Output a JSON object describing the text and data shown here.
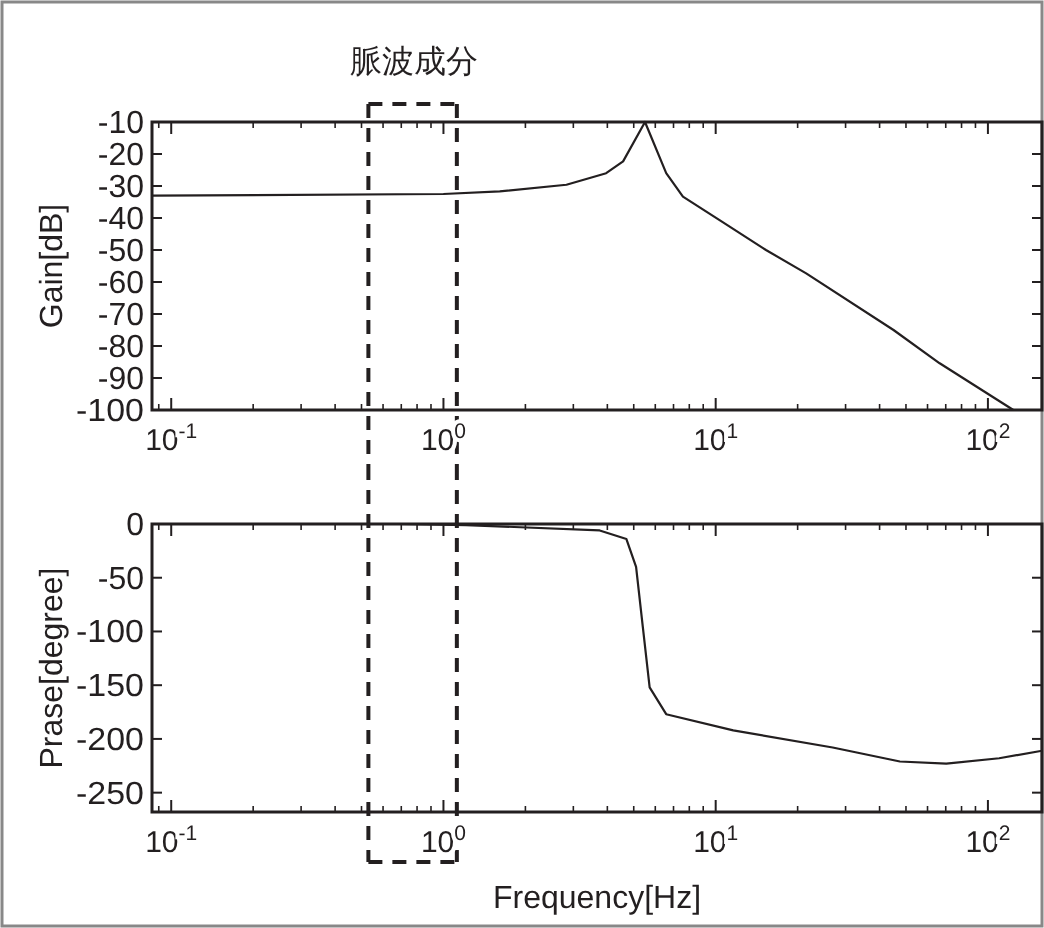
{
  "chart_data": [
    {
      "type": "line",
      "ylabel": "Gain[dB]",
      "log": "x",
      "xlim": [
        0.085,
        158
      ],
      "ylim": [
        -100,
        -10
      ],
      "xticks": [
        {
          "value": 0.1,
          "label": "10$^{-1}$"
        },
        {
          "value": 1,
          "label": "10$^{0}$"
        },
        {
          "value": 10,
          "label": "10$^{1}$"
        },
        {
          "value": 100,
          "label": "10$^{2}$"
        }
      ],
      "yticks": [
        -100,
        -90,
        -80,
        -70,
        -60,
        -50,
        -40,
        -30,
        -20,
        -10
      ],
      "x": [
        0.085,
        1,
        1.61,
        2.83,
        3.96,
        4.57,
        5.5,
        6.58,
        7.58,
        10.3,
        15.3,
        21.5,
        45,
        66.5,
        124
      ],
      "series": [
        {
          "color": "#231f20",
          "values": [
            -33,
            -32.5,
            -31.7,
            -29.6,
            -26,
            -22.3,
            -10,
            -26,
            -33.3,
            -40.6,
            -50,
            -57.3,
            -75,
            -85.4,
            -100
          ]
        }
      ],
      "annotations": [
        "脈波成分"
      ],
      "ref_lines": [
        {
          "axis": "x",
          "value": 0.53,
          "line_style": "dashed"
        },
        {
          "axis": "x",
          "value": 1.12,
          "line_style": "dashed"
        }
      ]
    },
    {
      "type": "line",
      "xlabel": "Frequency[Hz]",
      "ylabel": "Prase[degree]",
      "log": "x",
      "xlim": [
        0.085,
        158
      ],
      "ylim": [
        -268,
        0
      ],
      "xticks": [
        {
          "value": 0.1,
          "label": "10$^{-1}$"
        },
        {
          "value": 1,
          "label": "10$^{0}$"
        },
        {
          "value": 10,
          "label": "10$^{1}$"
        },
        {
          "value": 100,
          "label": "10$^{2}$"
        }
      ],
      "yticks": [
        -250,
        -200,
        -150,
        -100,
        -50,
        0
      ],
      "x": [
        0.69,
        1.21,
        3.75,
        4.7,
        5.1,
        5.4,
        5.72,
        6.58,
        11.6,
        26.9,
        47.5,
        70.3,
        110,
        158
      ],
      "series": [
        {
          "color": "#231f20",
          "values": [
            0,
            -1,
            -6,
            -14,
            -40,
            -96,
            -152,
            -177,
            -192,
            -208,
            -221,
            -223,
            -218,
            -211
          ]
        }
      ],
      "ref_lines": [
        {
          "axis": "x",
          "value": 0.53,
          "line_style": "dashed"
        },
        {
          "axis": "x",
          "value": 1.12,
          "line_style": "dashed"
        }
      ]
    }
  ]
}
